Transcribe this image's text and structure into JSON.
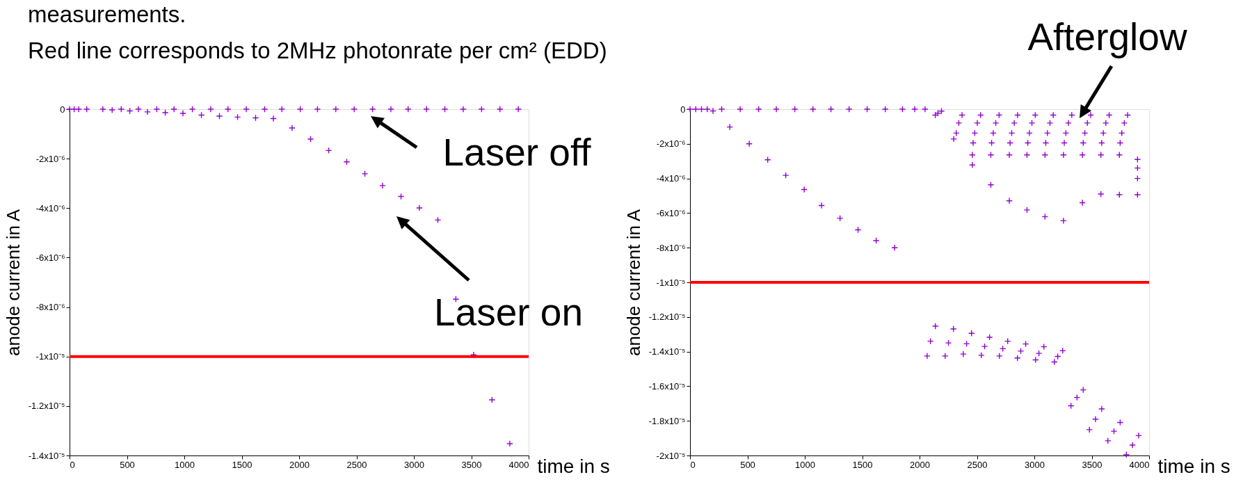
{
  "chart_data": [
    {
      "type": "scatter",
      "title": "Red line corresponds to 2MHz photonrate per cm² (EDD)",
      "xlabel": "time in s",
      "ylabel": "anode current in A",
      "xlim": [
        0,
        4000
      ],
      "xticks": [
        0,
        500,
        1000,
        1500,
        2000,
        2500,
        3000,
        3500,
        4000
      ],
      "ylim": [
        -1.4e-05,
        0
      ],
      "yticks": [
        {
          "value": 0,
          "label": "0"
        },
        {
          "value": -2e-06,
          "label": "-2x10⁻⁶"
        },
        {
          "value": -4e-06,
          "label": "-4x10⁻⁶"
        },
        {
          "value": -6e-06,
          "label": "-6x10⁻⁶"
        },
        {
          "value": -8e-06,
          "label": "-8x10⁻⁶"
        },
        {
          "value": -1e-05,
          "label": "-1x10⁻⁵"
        },
        {
          "value": -1.2e-05,
          "label": "-1.2x10⁻⁵"
        },
        {
          "value": -1.4e-05,
          "label": "-1.4x10⁻⁵"
        }
      ],
      "grid": false,
      "marker": "cross",
      "legend": false,
      "series": [
        {
          "color": "#9400d3",
          "x": [
            0,
            40,
            80,
            150,
            290,
            450,
            600,
            760,
            910,
            1070,
            1230,
            1380,
            1540,
            1700,
            1850,
            2010,
            2160,
            2320,
            2480,
            2640,
            2800,
            2950,
            3110,
            3270,
            3430,
            3590,
            3750,
            3910,
            371,
            525,
            679,
            834,
            988,
            1149,
            1306,
            1464,
            1621,
            1776,
            1939,
            2100,
            2258,
            2415,
            2573,
            2727,
            2888,
            3048,
            3209,
            3366,
            3521,
            3681,
            3836
          ],
          "values": [
            0,
            0,
            0,
            0,
            0,
            0,
            0,
            0,
            0,
            0,
            0,
            0,
            0,
            0,
            0,
            0,
            0,
            0,
            0,
            0,
            0,
            0,
            0,
            0,
            0,
            0,
            0,
            0,
            -3e-08,
            -7e-08,
            -1.1e-07,
            -1.4e-07,
            -1.7e-07,
            -2.4e-07,
            -2.8e-07,
            -3.2e-07,
            -3.5e-07,
            -3.8e-07,
            -7.6e-07,
            -1.21e-06,
            -1.67e-06,
            -2.13e-06,
            -2.61e-06,
            -3.09e-06,
            -3.53e-06,
            -3.99e-06,
            -4.48e-06,
            -7.68e-06,
            -9.93e-06,
            -1.175e-05,
            -1.352e-05
          ]
        }
      ],
      "ref_lines": [
        {
          "axis": "y",
          "value": -1e-05,
          "color": "#ff0000"
        }
      ],
      "annotations": [
        "measurements.",
        "Laser off",
        "Laser on"
      ]
    },
    {
      "type": "scatter",
      "xlabel": "time in s",
      "ylabel": "anode current in A",
      "xlim": [
        0,
        4000
      ],
      "xticks": [
        0,
        500,
        1000,
        1500,
        2000,
        2500,
        3000,
        3500,
        4000
      ],
      "ylim": [
        -2e-05,
        0
      ],
      "yticks": [
        {
          "value": 0,
          "label": "0"
        },
        {
          "value": -2e-06,
          "label": "-2x10⁻⁶"
        },
        {
          "value": -4e-06,
          "label": "-4x10⁻⁶"
        },
        {
          "value": -6e-06,
          "label": "-6x10⁻⁶"
        },
        {
          "value": -8e-06,
          "label": "-8x10⁻⁶"
        },
        {
          "value": -1e-05,
          "label": "-1x10⁻⁵"
        },
        {
          "value": -1.2e-05,
          "label": "-1.2x10⁻⁵"
        },
        {
          "value": -1.4e-05,
          "label": "-1.4x10⁻⁵"
        },
        {
          "value": -1.6e-05,
          "label": "-1.6x10⁻⁵"
        },
        {
          "value": -1.8e-05,
          "label": "-1.8x10⁻⁵"
        },
        {
          "value": -2e-05,
          "label": "-2x10⁻⁵"
        }
      ],
      "grid": false,
      "marker": "cross",
      "legend": false,
      "series": [
        {
          "color": "#9400d3",
          "x": [
            0,
            50,
            100,
            150,
            200,
            276,
            437,
            598,
            752,
            913,
            1071,
            1228,
            1386,
            1543,
            1701,
            1851,
            1958,
            2048,
            347,
            516,
            677,
            834,
            995,
            1146,
            1307,
            1464,
            1622,
            1783,
            2137,
            2191,
            2160,
            2370,
            2342,
            2320,
            2298,
            2532,
            2503,
            2481,
            2467,
            2460,
            2460,
            2693,
            2664,
            2642,
            2628,
            2621,
            2621,
            2854,
            2825,
            2803,
            2789,
            2782,
            2782,
            3008,
            2979,
            2957,
            2943,
            2936,
            2936,
            3165,
            3136,
            3114,
            3100,
            3093,
            3093,
            3326,
            3297,
            3275,
            3261,
            3254,
            3254,
            3491,
            3462,
            3440,
            3426,
            3419,
            3419,
            3652,
            3623,
            3601,
            3587,
            3580,
            3580,
            3813,
            3784,
            3762,
            3748,
            3741,
            3741,
            3899,
            3899,
            3899,
            3899,
            2066,
            2095,
            2138,
            2223,
            2252,
            2295,
            2381,
            2410,
            2453,
            2538,
            2567,
            2610,
            2696,
            2725,
            2768,
            2853,
            2882,
            2925,
            3011,
            3040,
            3083,
            3175,
            3204,
            3247,
            3319,
            3372,
            3426,
            3480,
            3533,
            3587,
            3641,
            3694,
            3748,
            3802,
            3855,
            3909
          ],
          "values": [
            0,
            0,
            0,
            0,
            -1e-07,
            0,
            0,
            0,
            0,
            0,
            0,
            0,
            0,
            0,
            0,
            0,
            0,
            0,
            -1.03e-06,
            -2e-06,
            -2.92e-06,
            -3.82e-06,
            -4.64e-06,
            -5.56e-06,
            -6.3e-06,
            -6.97e-06,
            -7.59e-06,
            -8e-06,
            -3.4e-07,
            -1.1e-07,
            -2.3e-07,
            -3.4e-07,
            -8e-07,
            -1.38e-06,
            -1.72e-06,
            -3.4e-07,
            -8e-07,
            -1.38e-06,
            -1.95e-06,
            -2.64e-06,
            -3.22e-06,
            -3.4e-07,
            -8e-07,
            -1.38e-06,
            -1.95e-06,
            -2.64e-06,
            -4.37e-06,
            -3.4e-07,
            -8e-07,
            -1.38e-06,
            -1.95e-06,
            -2.64e-06,
            -5.29e-06,
            -3.4e-07,
            -8e-07,
            -1.38e-06,
            -1.95e-06,
            -2.64e-06,
            -5.82e-06,
            -3.4e-07,
            -8e-07,
            -1.38e-06,
            -1.95e-06,
            -2.64e-06,
            -6.21e-06,
            -3.4e-07,
            -8e-07,
            -1.38e-06,
            -1.95e-06,
            -2.64e-06,
            -6.44e-06,
            -3.4e-07,
            -8e-07,
            -1.38e-06,
            -1.95e-06,
            -2.64e-06,
            -5.4e-06,
            -3.4e-07,
            -8e-07,
            -1.38e-06,
            -1.95e-06,
            -2.64e-06,
            -4.9e-06,
            -3.4e-07,
            -8e-07,
            -1.38e-06,
            -1.95e-06,
            -2.64e-06,
            -4.94e-06,
            -2.9e-06,
            -3.4e-06,
            -4e-06,
            -4.94e-06,
            -1.425e-05,
            -1.34e-05,
            -1.253e-05,
            -1.425e-05,
            -1.35e-05,
            -1.269e-05,
            -1.414e-05,
            -1.355e-05,
            -1.294e-05,
            -1.421e-05,
            -1.37e-05,
            -1.317e-05,
            -1.425e-05,
            -1.383e-05,
            -1.34e-05,
            -1.437e-05,
            -1.397e-05,
            -1.356e-05,
            -1.448e-05,
            -1.41e-05,
            -1.372e-05,
            -1.46e-05,
            -1.428e-05,
            -1.395e-05,
            -1.713e-05,
            -1.665e-05,
            -1.621e-05,
            -1.851e-05,
            -1.79e-05,
            -1.731e-05,
            -1.915e-05,
            -1.86e-05,
            -1.809e-05,
            -1.995e-05,
            -1.94e-05,
            -1.885e-05
          ]
        }
      ],
      "ref_lines": [
        {
          "axis": "y",
          "value": -1e-05,
          "color": "#ff0000"
        }
      ],
      "annotations": [
        "Afterglow"
      ]
    }
  ]
}
